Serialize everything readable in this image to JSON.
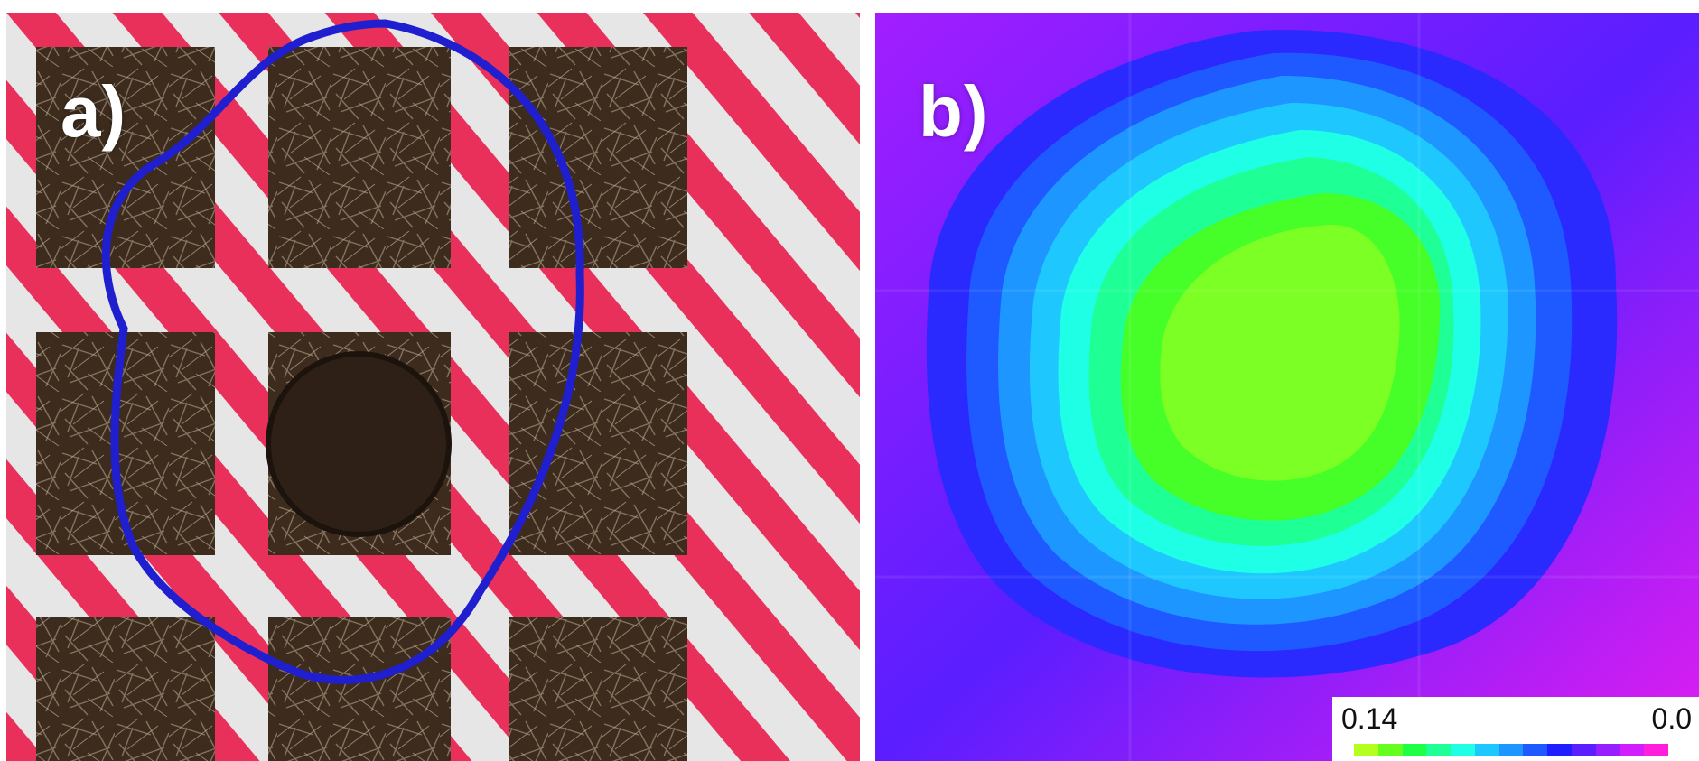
{
  "figure": {
    "panel_a": {
      "label": "a)",
      "photo_icon": "soil-plot-grid-photo",
      "outline_color": "#1f1fcf",
      "tape_colors": {
        "white": "#e8e8e8",
        "red": "#e8305a"
      }
    },
    "panel_b": {
      "label": "b)",
      "heatmap_icon": "contour-heatmap",
      "colorbar": {
        "min_label": "0.14",
        "max_label": "0.0",
        "colors": [
          "#b4ff1e",
          "#64ff1e",
          "#1eff46",
          "#1eff96",
          "#1effe6",
          "#1ec8ff",
          "#1e96ff",
          "#1e5aff",
          "#1e1eff",
          "#5a1eff",
          "#961eff",
          "#d21eff",
          "#ff1edc"
        ]
      }
    }
  }
}
